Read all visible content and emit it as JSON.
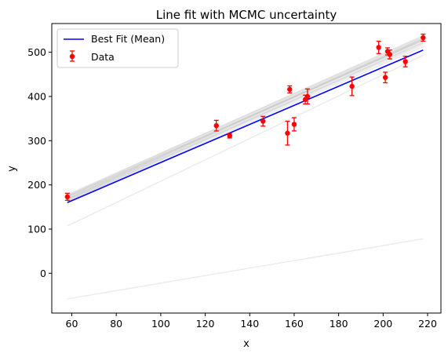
{
  "chart_data": {
    "type": "scatter",
    "title": "Line fit with MCMC uncertainty",
    "xlabel": "x",
    "ylabel": "y",
    "xlim": [
      51,
      226
    ],
    "ylim": [
      -90,
      565
    ],
    "xticks": [
      "60",
      "80",
      "100",
      "120",
      "140",
      "160",
      "180",
      "200",
      "220"
    ],
    "yticks": [
      "0",
      "100",
      "200",
      "300",
      "400",
      "500"
    ],
    "legend": {
      "placement": "top-left",
      "entries": [
        "Best Fit (Mean)",
        "Data"
      ]
    },
    "grid": false,
    "series": [
      {
        "name": "Data",
        "kind": "errorbar",
        "color": "#ff0000",
        "x": [
          58,
          125,
          131,
          146,
          157,
          158,
          160,
          165,
          166,
          186,
          198,
          201,
          202,
          203,
          210,
          218
        ],
        "y": [
          173,
          334,
          311,
          344,
          317,
          416,
          337,
          393,
          400,
          423,
          511,
          443,
          502,
          495,
          479,
          533
        ],
        "yerr": [
          8,
          12,
          5,
          11,
          27,
          8,
          15,
          10,
          17,
          21,
          14,
          12,
          8,
          10,
          12,
          8
        ]
      },
      {
        "name": "Best Fit (Mean)",
        "kind": "line",
        "color": "#0000ff",
        "x": [
          58,
          218
        ],
        "y": [
          160,
          505
        ]
      }
    ],
    "mcmc_samples": {
      "color": "#bbbbbb",
      "x": [
        58,
        218
      ],
      "lines": [
        [
          173,
          532
        ],
        [
          168,
          529
        ],
        [
          165,
          523
        ],
        [
          178,
          536
        ],
        [
          170,
          528
        ],
        [
          163,
          517
        ],
        [
          175,
          534
        ],
        [
          167,
          526
        ],
        [
          172,
          530
        ],
        [
          160,
          513
        ],
        [
          176,
          538
        ],
        [
          166,
          520
        ],
        [
          169,
          531
        ],
        [
          174,
          527
        ],
        [
          162,
          522
        ],
        [
          107,
          493
        ],
        [
          -58,
          78
        ]
      ]
    }
  }
}
